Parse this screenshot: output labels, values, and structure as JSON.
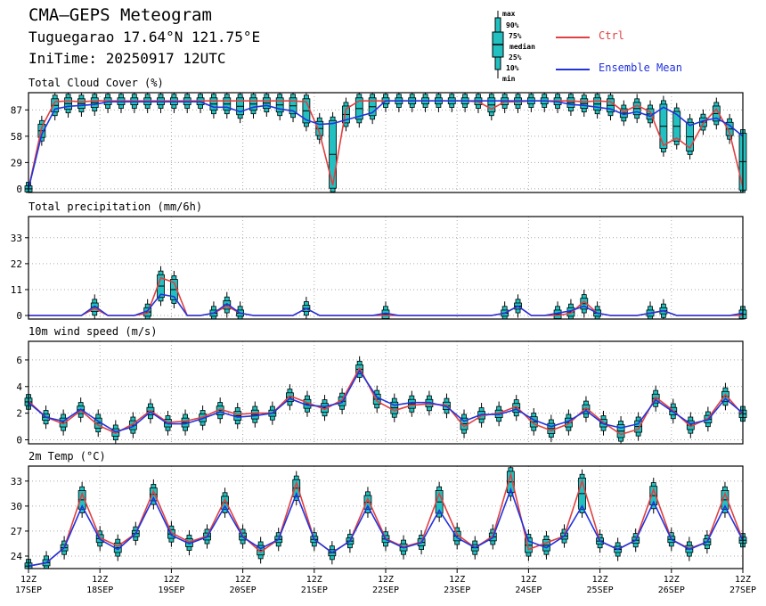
{
  "header": {
    "title": "CMA–GEPS Meteogram",
    "location": "Tuguegarao 17.64°N 121.75°E",
    "initime": "IniTime: 20250917 12UTC"
  },
  "legend": {
    "box_labels": [
      "max",
      "90%",
      "75%",
      "median",
      "25%",
      "10%",
      "min"
    ],
    "ctrl_label": "Ctrl",
    "ens_label": "Ensemble Mean",
    "ctrl_color": "#e04040",
    "ens_color": "#2233dd",
    "box_color": "#22c0c0"
  },
  "chart_data": [
    {
      "type": "line",
      "title": "Total Cloud Cover (%)",
      "ylim": [
        -4,
        106
      ],
      "yticks": [
        0,
        29,
        58,
        87
      ],
      "series": [
        {
          "name": "Ctrl",
          "values": [
            0,
            68,
            96,
            97,
            96,
            97,
            97,
            97,
            97,
            97,
            97,
            97,
            97,
            97,
            97,
            97,
            97,
            97,
            97,
            97,
            97,
            96,
            62,
            4,
            88,
            97,
            97,
            97,
            97,
            97,
            97,
            97,
            97,
            97,
            96,
            88,
            96,
            96,
            97,
            97,
            97,
            97,
            96,
            97,
            96,
            85,
            92,
            85,
            48,
            56,
            45,
            72,
            88,
            62,
            2
          ]
        },
        {
          "name": "Ensemble Mean",
          "values": [
            0,
            60,
            88,
            91,
            92,
            93,
            96,
            96,
            96,
            96,
            96,
            96,
            96,
            96,
            90,
            90,
            85,
            90,
            92,
            88,
            86,
            76,
            71,
            72,
            76,
            80,
            84,
            97,
            97,
            97,
            97,
            97,
            97,
            97,
            97,
            97,
            97,
            97,
            97,
            97,
            96,
            93,
            92,
            90,
            88,
            82,
            85,
            80,
            90,
            82,
            70,
            75,
            78,
            70,
            58
          ]
        }
      ]
    },
    {
      "type": "line",
      "title": "Total precipitation (mm/6h)",
      "ylim": [
        -1.5,
        42
      ],
      "yticks": [
        0,
        11,
        22,
        33
      ],
      "series": [
        {
          "name": "Ctrl",
          "values": [
            0,
            0,
            0,
            0,
            0,
            3,
            0,
            0,
            0,
            1,
            16,
            14,
            0,
            0,
            1,
            4,
            1,
            0,
            0,
            0,
            0,
            3,
            0,
            0,
            0,
            0,
            0,
            0,
            0,
            0,
            0,
            0,
            0,
            0,
            0,
            0,
            1,
            4,
            0,
            0,
            0,
            1,
            6,
            1,
            0,
            0,
            0,
            1,
            2,
            0,
            0,
            0,
            0,
            0,
            0
          ]
        },
        {
          "name": "Ensemble Mean",
          "values": [
            0,
            0,
            0,
            0,
            0,
            4,
            0,
            0,
            0,
            2,
            9,
            8,
            0,
            0,
            1,
            5,
            1,
            0,
            0,
            0,
            0,
            3,
            0,
            0,
            0,
            0,
            0,
            1,
            0,
            0,
            0,
            0,
            0,
            0,
            0,
            0,
            1,
            4,
            0,
            0,
            1,
            2,
            4,
            1,
            0,
            0,
            0,
            1,
            2,
            0,
            0,
            0,
            0,
            0,
            1
          ]
        }
      ]
    },
    {
      "type": "line",
      "title": "10m wind speed (m/s)",
      "ylim": [
        -0.3,
        7.4
      ],
      "yticks": [
        0,
        2,
        4,
        6
      ],
      "series": [
        {
          "name": "Ctrl",
          "values": [
            2.9,
            1.7,
            1.2,
            2.2,
            1.1,
            0.5,
            1.2,
            2.2,
            1.3,
            1.4,
            1.7,
            2.3,
            1.9,
            2.0,
            2.0,
            3.3,
            2.8,
            2.3,
            3.0,
            5.4,
            2.9,
            2.2,
            2.6,
            2.7,
            2.6,
            1.0,
            1.8,
            2.0,
            2.5,
            1.2,
            0.7,
            1.2,
            2.4,
            1.3,
            0.4,
            0.8,
            3.2,
            2.2,
            1.0,
            1.6,
            3.4,
            1.9
          ]
        },
        {
          "name": "Ensemble Mean",
          "values": [
            2.8,
            1.7,
            1.4,
            2.3,
            1.4,
            0.6,
            1.0,
            2.1,
            1.2,
            1.2,
            1.6,
            2.1,
            1.7,
            1.8,
            2.0,
            3.1,
            2.6,
            2.5,
            2.8,
            5.2,
            3.2,
            2.6,
            2.8,
            2.8,
            2.5,
            1.4,
            1.9,
            1.9,
            2.3,
            1.5,
            1.0,
            1.4,
            2.2,
            1.2,
            0.9,
            1.2,
            3.0,
            2.1,
            1.2,
            1.5,
            3.1,
            2.0
          ]
        }
      ]
    },
    {
      "type": "line",
      "title": "2m Temp (°C)",
      "ylim": [
        22.5,
        34.8
      ],
      "yticks": [
        24,
        27,
        30,
        33
      ],
      "series": [
        {
          "name": "Ctrl",
          "values": [
            22.8,
            23.2,
            25.0,
            31.5,
            26.2,
            25.2,
            26.7,
            31.8,
            26.8,
            25.7,
            26.4,
            30.8,
            26.4,
            24.5,
            26.0,
            32.8,
            26.0,
            24.4,
            25.8,
            30.9,
            26.1,
            25.1,
            25.7,
            31.5,
            26.6,
            25.0,
            26.4,
            33.8,
            24.8,
            25.6,
            26.4,
            33.0,
            25.8,
            24.8,
            25.9,
            32.0,
            26.0,
            24.9,
            25.7,
            31.5,
            25.9
          ]
        },
        {
          "name": "Ensemble Mean",
          "values": [
            22.8,
            23.2,
            25.0,
            30.0,
            26.0,
            24.8,
            26.7,
            31.0,
            26.5,
            25.5,
            26.3,
            30.0,
            26.3,
            24.9,
            26.0,
            31.5,
            26.0,
            24.4,
            25.8,
            30.0,
            26.0,
            25.0,
            25.6,
            29.5,
            26.2,
            25.0,
            26.2,
            32.0,
            25.8,
            25.0,
            26.4,
            30.0,
            25.8,
            24.8,
            25.9,
            30.5,
            26.0,
            24.8,
            25.7,
            30.0,
            25.9
          ]
        }
      ]
    }
  ],
  "x_axis": {
    "tick_labels": [
      [
        "12Z",
        "17SEP"
      ],
      [
        "12Z",
        "18SEP"
      ],
      [
        "12Z",
        "19SEP"
      ],
      [
        "12Z",
        "20SEP"
      ],
      [
        "12Z",
        "21SEP"
      ],
      [
        "12Z",
        "22SEP"
      ],
      [
        "12Z",
        "23SEP"
      ],
      [
        "12Z",
        "24SEP"
      ],
      [
        "12Z",
        "25SEP"
      ],
      [
        "12Z",
        "26SEP"
      ],
      [
        "12Z",
        "27SEP"
      ]
    ]
  }
}
